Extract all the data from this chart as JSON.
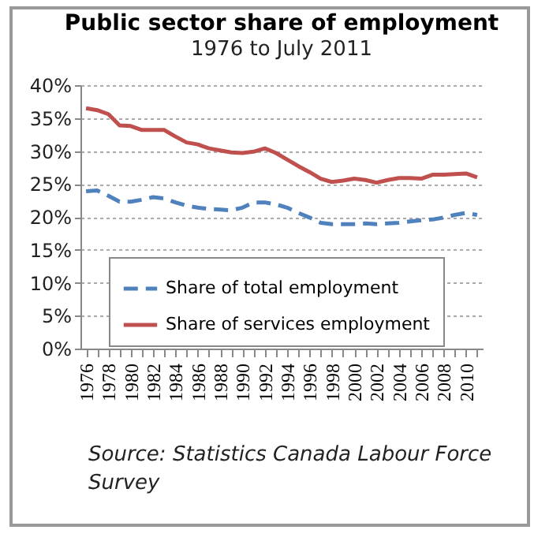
{
  "chart_data": {
    "type": "line",
    "title": "Public sector share of employment",
    "subtitle": "1976 to July 2011",
    "categories": [
      "1976",
      null,
      "1978",
      null,
      "1980",
      null,
      "1982",
      null,
      "1984",
      null,
      "1986",
      null,
      "1988",
      null,
      "1990",
      null,
      "1992",
      null,
      "1994",
      null,
      "1996",
      null,
      "1998",
      null,
      "2000",
      null,
      "2002",
      null,
      "2004",
      null,
      "2006",
      null,
      "2008",
      null,
      "2010",
      null
    ],
    "series": [
      {
        "name": "Share of total employment",
        "color": "#4f81bd",
        "line_style": "dashed",
        "values": [
          23.9,
          24.0,
          23.2,
          22.3,
          22.3,
          22.6,
          23.0,
          22.8,
          22.2,
          21.7,
          21.4,
          21.2,
          21.1,
          21.0,
          21.4,
          22.2,
          22.2,
          21.9,
          21.4,
          20.6,
          19.9,
          19.1,
          18.9,
          18.9,
          18.9,
          19.0,
          18.9,
          19.0,
          19.1,
          19.3,
          19.5,
          19.6,
          19.9,
          20.3,
          20.6,
          20.3
        ]
      },
      {
        "name": "Share of services employment",
        "color": "#c0504d",
        "line_style": "solid",
        "values": [
          36.5,
          36.2,
          35.6,
          33.9,
          33.8,
          33.2,
          33.2,
          33.2,
          32.2,
          31.3,
          31.0,
          30.4,
          30.1,
          29.8,
          29.7,
          29.9,
          30.4,
          29.7,
          28.7,
          27.7,
          26.8,
          25.8,
          25.3,
          25.5,
          25.8,
          25.6,
          25.2,
          25.6,
          25.9,
          25.9,
          25.8,
          26.4,
          26.4,
          26.5,
          26.6,
          26.0
        ]
      }
    ],
    "ylim": [
      0,
      40
    ],
    "yticks": [
      {
        "value": 0,
        "label": "0%"
      },
      {
        "value": 5,
        "label": "5%"
      },
      {
        "value": 10,
        "label": "10%"
      },
      {
        "value": 15,
        "label": "15%"
      },
      {
        "value": 20,
        "label": "20%"
      },
      {
        "value": 25,
        "label": "25%"
      },
      {
        "value": 30,
        "label": "30%"
      },
      {
        "value": 35,
        "label": "35%"
      },
      {
        "value": 40,
        "label": "40%"
      }
    ],
    "grid": "y",
    "legend": "bottom",
    "marker": "none",
    "annotations": [
      "Source: Statistics Canada Labour Force Survey"
    ]
  }
}
